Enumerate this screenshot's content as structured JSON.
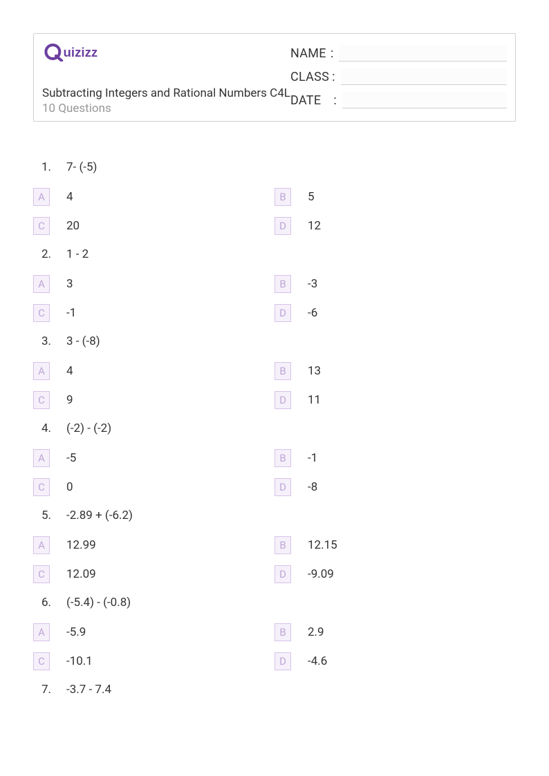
{
  "logo": {
    "color": "#6b3fa0",
    "alt": "Quizizz"
  },
  "header": {
    "title": "Subtracting Integers and Rational Numbers C4L",
    "subtitle": "10 Questions",
    "fields": [
      {
        "label": "NAME"
      },
      {
        "label": "CLASS"
      },
      {
        "label": "DATE"
      }
    ]
  },
  "answer_box_style": {
    "border_color": "#d6c3e8",
    "bg_color": "#f6f0fb",
    "text_color": "#bda6d4"
  },
  "questions": [
    {
      "n": "1.",
      "text": "7- (-5)",
      "answers": [
        {
          "l": "A",
          "t": "4"
        },
        {
          "l": "B",
          "t": "5"
        },
        {
          "l": "C",
          "t": "20"
        },
        {
          "l": "D",
          "t": "12"
        }
      ]
    },
    {
      "n": "2.",
      "text": "1 - 2",
      "answers": [
        {
          "l": "A",
          "t": "3"
        },
        {
          "l": "B",
          "t": "-3"
        },
        {
          "l": "C",
          "t": "-1"
        },
        {
          "l": "D",
          "t": "-6"
        }
      ]
    },
    {
      "n": "3.",
      "text": "3 - (-8)",
      "answers": [
        {
          "l": "A",
          "t": "4"
        },
        {
          "l": "B",
          "t": "13"
        },
        {
          "l": "C",
          "t": "9"
        },
        {
          "l": "D",
          "t": "11"
        }
      ]
    },
    {
      "n": "4.",
      "text": "(-2) - (-2)",
      "answers": [
        {
          "l": "A",
          "t": "-5"
        },
        {
          "l": "B",
          "t": "-1"
        },
        {
          "l": "C",
          "t": "0"
        },
        {
          "l": "D",
          "t": "-8"
        }
      ]
    },
    {
      "n": "5.",
      "text": "-2.89 + (-6.2)",
      "answers": [
        {
          "l": "A",
          "t": "12.99"
        },
        {
          "l": "B",
          "t": "12.15"
        },
        {
          "l": "C",
          "t": "12.09"
        },
        {
          "l": "D",
          "t": "-9.09"
        }
      ]
    },
    {
      "n": "6.",
      "text": "(-5.4) - (-0.8)",
      "answers": [
        {
          "l": "A",
          "t": "-5.9"
        },
        {
          "l": "B",
          "t": "2.9"
        },
        {
          "l": "C",
          "t": "-10.1"
        },
        {
          "l": "D",
          "t": "-4.6"
        }
      ]
    },
    {
      "n": "7.",
      "text": "-3.7 - 7.4",
      "answers": []
    }
  ]
}
